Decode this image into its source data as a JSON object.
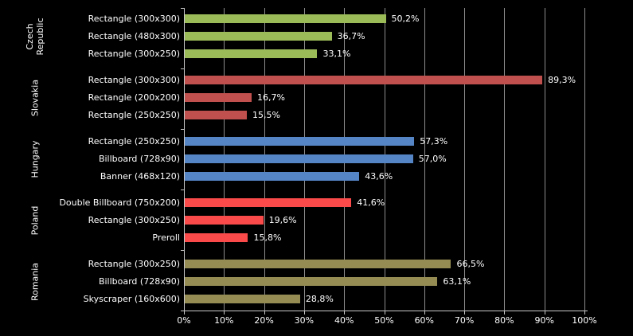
{
  "chart_data": {
    "type": "bar",
    "orientation": "horizontal",
    "title": "",
    "xlabel": "",
    "ylabel": "",
    "xlim": [
      0,
      100
    ],
    "grid": true,
    "legend": "none",
    "background_color": "#000000",
    "text_color": "#FFFFFF",
    "gridline_color": "#8C8C8C",
    "axis_color": "#C8C8C8",
    "x_ticks": [
      "0%",
      "10%",
      "20%",
      "30%",
      "40%",
      "50%",
      "60%",
      "70%",
      "80%",
      "90%",
      "100%"
    ],
    "groups": [
      {
        "country": "Czech Republic",
        "country_lines": [
          "Czech",
          "Republic"
        ],
        "color": "#9BBB59",
        "bars": [
          {
            "label": "Rectangle (300x300)",
            "value": 50.2,
            "value_label": "50,2%"
          },
          {
            "label": "Rectangle (480x300)",
            "value": 36.7,
            "value_label": "36,7%"
          },
          {
            "label": "Rectangle (300x250)",
            "value": 33.1,
            "value_label": "33,1%"
          }
        ]
      },
      {
        "country": "Slovakia",
        "country_lines": [
          "Slovakia"
        ],
        "color": "#C0504D",
        "bars": [
          {
            "label": "Rectangle (300x300)",
            "value": 89.3,
            "value_label": "89,3%"
          },
          {
            "label": "Rectangle (200x200)",
            "value": 16.7,
            "value_label": "16,7%"
          },
          {
            "label": "Rectangle (250x250)",
            "value": 15.5,
            "value_label": "15,5%"
          }
        ]
      },
      {
        "country": "Hungary",
        "country_lines": [
          "Hungary"
        ],
        "color": "#5585C4",
        "bars": [
          {
            "label": "Rectangle (250x250)",
            "value": 57.3,
            "value_label": "57,3%"
          },
          {
            "label": "Billboard (728x90)",
            "value": 57.0,
            "value_label": "57,0%"
          },
          {
            "label": "Banner (468x120)",
            "value": 43.6,
            "value_label": "43,6%"
          }
        ]
      },
      {
        "country": "Poland",
        "country_lines": [
          "Poland"
        ],
        "color": "#FA4A4A",
        "bars": [
          {
            "label": "Double Billboard (750x200)",
            "value": 41.6,
            "value_label": "41,6%"
          },
          {
            "label": "Rectangle (300x250)",
            "value": 19.6,
            "value_label": "19,6%"
          },
          {
            "label": "Preroll",
            "value": 15.8,
            "value_label": "15,8%"
          }
        ]
      },
      {
        "country": "Romania",
        "country_lines": [
          "Romania"
        ],
        "color": "#958C54",
        "bars": [
          {
            "label": "Rectangle (300x250)",
            "value": 66.5,
            "value_label": "66,5%"
          },
          {
            "label": "Billboard (728x90)",
            "value": 63.1,
            "value_label": "63,1%"
          },
          {
            "label": "Skyscraper (160x600)",
            "value": 28.8,
            "value_label": "28,8%"
          }
        ]
      }
    ]
  }
}
